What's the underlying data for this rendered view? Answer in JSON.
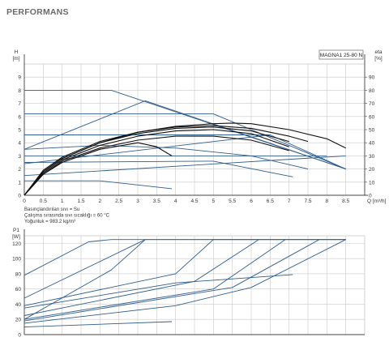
{
  "page": {
    "section_title": "PERFORMANS"
  },
  "colors": {
    "blue": "#2f5d8c",
    "black": "#111111",
    "grid": "#c9c9c9",
    "axis": "#444444"
  },
  "chart_data": [
    {
      "id": "head",
      "type": "line",
      "title": "MAGNA1 25-80 N",
      "ylabel_top": "H",
      "ylabel_unit": "[m]",
      "y2label_top": "eta",
      "y2label_unit": "[%]",
      "xlabel": "Q [m³/h]",
      "xlim": [
        0,
        9.0
      ],
      "ylim": [
        0,
        10
      ],
      "y2lim": [
        0,
        100
      ],
      "grid": true,
      "x_ticks": [
        "0",
        "0.5",
        "1",
        "1.5",
        "2",
        "2.5",
        "3",
        "3.5",
        "4",
        "4.5",
        "5",
        "5.5",
        "6",
        "6.5",
        "7",
        "7.5",
        "8",
        "8.5"
      ],
      "y_ticks": [
        "0",
        "1",
        "2",
        "3",
        "4",
        "5",
        "6",
        "7",
        "8",
        "9"
      ],
      "y2_ticks": [
        "0",
        "10",
        "20",
        "30",
        "40",
        "50",
        "60",
        "70",
        "80",
        "90"
      ],
      "notes": [
        "Basınçlandırılan sıvı = Su",
        "Çalışma sırasında sıvı sıcaklığı = 60 °C",
        "Yoğunluk = 983.2 kg/m³"
      ],
      "series": [
        {
          "color": "blue",
          "points": [
            [
              0,
              8
            ],
            [
              2.3,
              8
            ],
            [
              8.5,
              2
            ]
          ]
        },
        {
          "color": "blue",
          "points": [
            [
              0,
              6.2
            ],
            [
              5,
              6.2
            ],
            [
              8.5,
              2
            ]
          ]
        },
        {
          "color": "blue",
          "points": [
            [
              0,
              3.5
            ],
            [
              3.2,
              7.2
            ],
            [
              8.5,
              2
            ]
          ]
        },
        {
          "color": "blue",
          "points": [
            [
              0,
              4.6
            ],
            [
              6.5,
              4.6
            ],
            [
              8.5,
              2
            ]
          ]
        },
        {
          "color": "blue",
          "points": [
            [
              0,
              3.5
            ],
            [
              2,
              3.8
            ],
            [
              4,
              3.6
            ],
            [
              6,
              3
            ],
            [
              7.5,
              2
            ]
          ]
        },
        {
          "color": "blue",
          "points": [
            [
              0,
              2.4
            ],
            [
              6.5,
              4.6
            ]
          ]
        },
        {
          "color": "blue",
          "points": [
            [
              0,
              1.5
            ],
            [
              8.5,
              3
            ]
          ]
        },
        {
          "color": "blue",
          "points": [
            [
              0,
              3
            ],
            [
              8,
              3
            ]
          ]
        },
        {
          "color": "blue",
          "points": [
            [
              0,
              2.5
            ],
            [
              5,
              2.6
            ],
            [
              7.1,
              1.4
            ]
          ]
        },
        {
          "color": "blue",
          "points": [
            [
              0,
              1.1
            ],
            [
              2,
              1.1
            ],
            [
              3.9,
              0.5
            ]
          ]
        },
        {
          "color": "black",
          "points": [
            [
              0,
              0
            ],
            [
              0.5,
              18
            ],
            [
              1,
              28
            ],
            [
              2,
              40
            ],
            [
              3,
              48
            ],
            [
              4,
              52.5
            ],
            [
              5,
              54.5
            ],
            [
              5.5,
              55
            ],
            [
              6,
              54.5
            ],
            [
              7,
              50
            ],
            [
              8,
              43
            ],
            [
              8.5,
              36
            ]
          ]
        },
        {
          "color": "black",
          "points": [
            [
              0,
              0
            ],
            [
              0.5,
              19
            ],
            [
              1,
              29
            ],
            [
              2,
              41
            ],
            [
              3,
              48
            ],
            [
              4,
              52
            ],
            [
              5,
              53
            ],
            [
              6,
              51
            ],
            [
              7,
              45
            ],
            [
              7.5,
              41
            ]
          ]
        },
        {
          "color": "black",
          "points": [
            [
              0,
              0
            ],
            [
              0.5,
              18
            ],
            [
              1,
              28
            ],
            [
              2,
              40
            ],
            [
              3,
              47
            ],
            [
              4,
              51
            ],
            [
              5,
              52
            ],
            [
              6,
              49
            ],
            [
              7,
              41
            ]
          ]
        },
        {
          "color": "black",
          "points": [
            [
              0,
              0
            ],
            [
              0.5,
              17
            ],
            [
              1,
              27
            ],
            [
              2,
              38
            ],
            [
              3,
              45
            ],
            [
              4,
              49
            ],
            [
              5,
              50
            ],
            [
              6,
              47
            ],
            [
              7,
              37
            ]
          ]
        },
        {
          "color": "black",
          "points": [
            [
              0,
              0
            ],
            [
              0.5,
              16
            ],
            [
              1,
              26
            ],
            [
              2,
              36
            ],
            [
              3,
              42
            ],
            [
              4,
              45
            ],
            [
              5,
              45
            ],
            [
              6,
              42
            ],
            [
              7,
              34
            ]
          ]
        },
        {
          "color": "black",
          "points": [
            [
              0,
              0
            ],
            [
              0.5,
              16
            ],
            [
              1,
              25
            ],
            [
              2,
              35
            ],
            [
              3,
              40
            ],
            [
              3.5,
              37
            ],
            [
              3.9,
              30
            ]
          ]
        }
      ]
    },
    {
      "id": "power",
      "type": "line",
      "ylabel_top": "P1",
      "ylabel_unit": "[W]",
      "xlim": [
        0,
        9.0
      ],
      "ylim": [
        0,
        130
      ],
      "grid": true,
      "y_ticks": [
        "0",
        "20",
        "40",
        "60",
        "80",
        "100",
        "120"
      ],
      "series": [
        {
          "color": "blue",
          "points": [
            [
              0,
              78
            ],
            [
              1.7,
              122
            ],
            [
              2.3,
              125
            ],
            [
              8.5,
              125
            ]
          ]
        },
        {
          "color": "blue",
          "points": [
            [
              0,
              48
            ],
            [
              3.2,
              125
            ],
            [
              8.5,
              125
            ]
          ]
        },
        {
          "color": "blue",
          "points": [
            [
              0,
              38
            ],
            [
              4,
              80
            ],
            [
              5,
              125
            ],
            [
              8.5,
              125
            ]
          ]
        },
        {
          "color": "blue",
          "points": [
            [
              0,
              20
            ],
            [
              2.3,
              85
            ],
            [
              3.2,
              125
            ]
          ]
        },
        {
          "color": "blue",
          "points": [
            [
              0,
              25
            ],
            [
              4.5,
              70
            ],
            [
              6.2,
              125
            ]
          ]
        },
        {
          "color": "blue",
          "points": [
            [
              0,
              20
            ],
            [
              5,
              60
            ],
            [
              6.9,
              125
            ]
          ]
        },
        {
          "color": "blue",
          "points": [
            [
              0,
              18
            ],
            [
              5.5,
              62
            ],
            [
              7.8,
              125
            ]
          ]
        },
        {
          "color": "blue",
          "points": [
            [
              0,
              15
            ],
            [
              4,
              38
            ],
            [
              6,
              62
            ],
            [
              8.5,
              125
            ]
          ]
        },
        {
          "color": "blue",
          "points": [
            [
              0,
              35
            ],
            [
              4,
              68
            ],
            [
              7.1,
              79
            ]
          ]
        },
        {
          "color": "blue",
          "points": [
            [
              0,
              10
            ],
            [
              3.9,
              17
            ]
          ]
        }
      ]
    }
  ]
}
